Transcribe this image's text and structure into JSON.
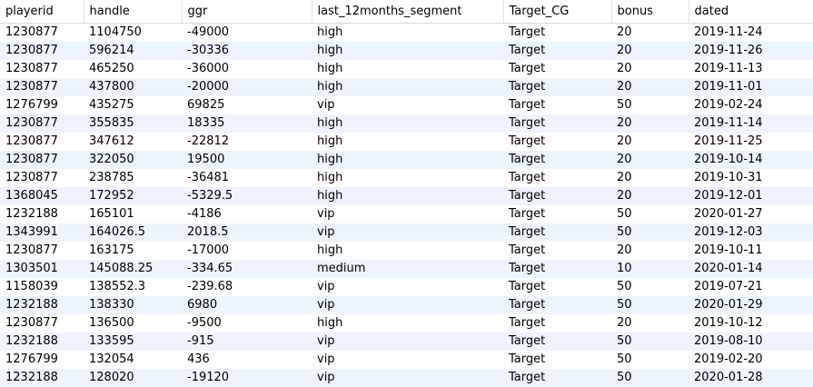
{
  "columns": [
    "playerid",
    "handle",
    "ggr",
    "last_12months_segment",
    "Target_CG",
    "bonus",
    "dated"
  ],
  "rows": [
    [
      "1230877",
      "1104750",
      "-49000",
      "high",
      "Target",
      "20",
      "2019-11-24"
    ],
    [
      "1230877",
      "596214",
      "-30336",
      "high",
      "Target",
      "20",
      "2019-11-26"
    ],
    [
      "1230877",
      "465250",
      "-36000",
      "high",
      "Target",
      "20",
      "2019-11-13"
    ],
    [
      "1230877",
      "437800",
      "-20000",
      "high",
      "Target",
      "20",
      "2019-11-01"
    ],
    [
      "1276799",
      "435275",
      "69825",
      "vip",
      "Target",
      "50",
      "2019-02-24"
    ],
    [
      "1230877",
      "355835",
      "18335",
      "high",
      "Target",
      "20",
      "2019-11-14"
    ],
    [
      "1230877",
      "347612",
      "-22812",
      "high",
      "Target",
      "20",
      "2019-11-25"
    ],
    [
      "1230877",
      "322050",
      "19500",
      "high",
      "Target",
      "20",
      "2019-10-14"
    ],
    [
      "1230877",
      "238785",
      "-36481",
      "high",
      "Target",
      "20",
      "2019-10-31"
    ],
    [
      "1368045",
      "172952",
      "-5329.5",
      "high",
      "Target",
      "20",
      "2019-12-01"
    ],
    [
      "1232188",
      "165101",
      "-4186",
      "vip",
      "Target",
      "50",
      "2020-01-27"
    ],
    [
      "1343991",
      "164026.5",
      "2018.5",
      "vip",
      "Target",
      "50",
      "2019-12-03"
    ],
    [
      "1230877",
      "163175",
      "-17000",
      "high",
      "Target",
      "20",
      "2019-10-11"
    ],
    [
      "1303501",
      "145088.25",
      "-334.65",
      "medium",
      "Target",
      "10",
      "2020-01-14"
    ],
    [
      "1158039",
      "138552.3",
      "-239.68",
      "vip",
      "Target",
      "50",
      "2019-07-21"
    ],
    [
      "1232188",
      "138330",
      "6980",
      "vip",
      "Target",
      "50",
      "2020-01-29"
    ],
    [
      "1230877",
      "136500",
      "-9500",
      "high",
      "Target",
      "20",
      "2019-10-12"
    ],
    [
      "1232188",
      "133595",
      "-915",
      "vip",
      "Target",
      "50",
      "2019-08-10"
    ],
    [
      "1276799",
      "132054",
      "436",
      "vip",
      "Target",
      "50",
      "2019-02-20"
    ],
    [
      "1232188",
      "128020",
      "-19120",
      "vip",
      "Target",
      "50",
      "2020-01-28"
    ]
  ],
  "colors": {
    "row_alt": "#eef4fd",
    "row": "#ffffff",
    "header_border": "#d8d8d8"
  }
}
